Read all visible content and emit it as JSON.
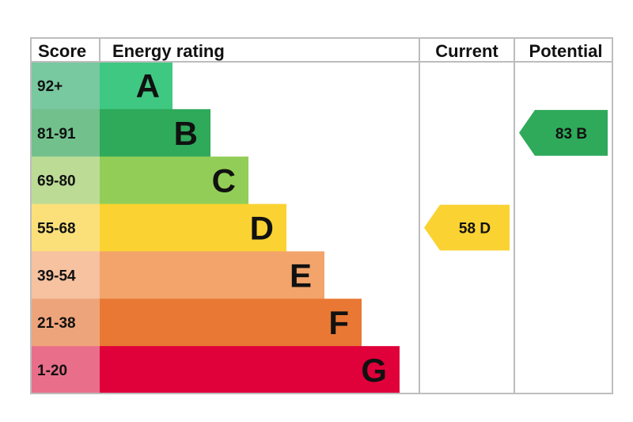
{
  "headers": {
    "score": "Score",
    "rating": "Energy rating",
    "current": "Current",
    "potential": "Potential"
  },
  "chart_data": {
    "type": "bar",
    "bands": [
      {
        "letter": "A",
        "score": "92+",
        "color": "#3fc882",
        "score_bg": "#78c8a0"
      },
      {
        "letter": "B",
        "score": "81-91",
        "color": "#2eaa5a",
        "score_bg": "#72c08c"
      },
      {
        "letter": "C",
        "score": "69-80",
        "color": "#92ce57",
        "score_bg": "#bcdc96"
      },
      {
        "letter": "D",
        "score": "55-68",
        "color": "#fad232",
        "score_bg": "#fbe07a"
      },
      {
        "letter": "E",
        "score": "39-54",
        "color": "#f3a46a",
        "score_bg": "#f6c2a0"
      },
      {
        "letter": "F",
        "score": "21-38",
        "color": "#e97834",
        "score_bg": "#eea47a"
      },
      {
        "letter": "G",
        "score": "1-20",
        "color": "#e0003a",
        "score_bg": "#e96e8a"
      }
    ],
    "current": {
      "value": 58,
      "letter": "D",
      "label": "58  D",
      "color": "#fad232"
    },
    "potential": {
      "value": 83,
      "letter": "B",
      "label": "83  B",
      "color": "#2eaa5a"
    }
  }
}
